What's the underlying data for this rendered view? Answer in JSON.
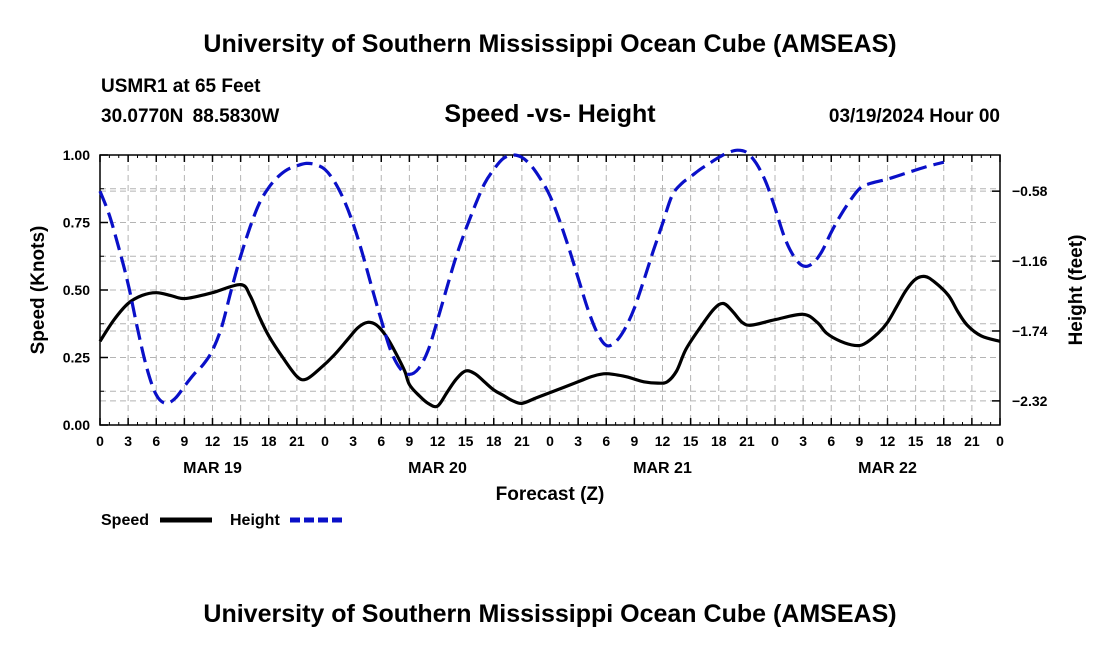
{
  "header": {
    "title": "University of Southern Mississippi Ocean Cube (AMSEAS)",
    "station": "USMR1 at 65 Feet",
    "coords": "30.0770N  88.5830W",
    "subtitle": "Speed -vs- Height",
    "date": "03/19/2024 Hour 00"
  },
  "footer": {
    "title": "University of Southern Mississippi Ocean Cube (AMSEAS)"
  },
  "colors": {
    "speed": "#000000",
    "height": "#0a10c8",
    "grid": "#b4b4b4"
  },
  "chart_data": {
    "type": "line",
    "title": "Speed -vs- Height",
    "xlabel": "Forecast (Z)",
    "ylabel": "Speed (Knots)",
    "y2label": "Height (feet)",
    "xlim": [
      0,
      96
    ],
    "ylim": [
      0,
      1
    ],
    "y2lim": [
      -2.52,
      -0.28
    ],
    "x_ticks": [
      0,
      3,
      6,
      9,
      12,
      15,
      18,
      21,
      24,
      27,
      30,
      33,
      36,
      39,
      42,
      45,
      48,
      51,
      54,
      57,
      60,
      63,
      66,
      69,
      72,
      75,
      78,
      81,
      84,
      87,
      90,
      93,
      96
    ],
    "x_tick_labels": [
      "0",
      "3",
      "6",
      "9",
      "12",
      "15",
      "18",
      "21",
      "0",
      "3",
      "6",
      "9",
      "12",
      "15",
      "18",
      "21",
      "0",
      "3",
      "6",
      "9",
      "12",
      "15",
      "18",
      "21",
      "0",
      "3",
      "6",
      "9",
      "12",
      "15",
      "18",
      "21",
      "0"
    ],
    "date_labels": [
      {
        "x": 12,
        "label": "MAR 19"
      },
      {
        "x": 36,
        "label": "MAR 20"
      },
      {
        "x": 60,
        "label": "MAR 21"
      },
      {
        "x": 84,
        "label": "MAR 22"
      }
    ],
    "y_ticks": [
      0,
      0.25,
      0.5,
      0.75,
      1.0
    ],
    "y_tick_labels": [
      "0.00",
      "0.25",
      "0.50",
      "0.75",
      "1.00"
    ],
    "y2_ticks": [
      -2.32,
      -1.74,
      -1.16,
      -0.58
    ],
    "y2_tick_labels": [
      "−2.32",
      "−1.74",
      "−1.16",
      "−0.58"
    ],
    "grid": true,
    "legend": {
      "position": "bottom-left",
      "entries": [
        "Speed",
        "Height"
      ]
    },
    "series": [
      {
        "name": "Speed",
        "axis": "left",
        "style": "solid",
        "points": [
          [
            0,
            0.31
          ],
          [
            1.5,
            0.39
          ],
          [
            3,
            0.45
          ],
          [
            4.5,
            0.48
          ],
          [
            6,
            0.49
          ],
          [
            7.5,
            0.48
          ],
          [
            8.5,
            0.47
          ],
          [
            9.5,
            0.47
          ],
          [
            12,
            0.49
          ],
          [
            15,
            0.52
          ],
          [
            16,
            0.48
          ],
          [
            17,
            0.4
          ],
          [
            18,
            0.33
          ],
          [
            19.5,
            0.25
          ],
          [
            21,
            0.18
          ],
          [
            22,
            0.17
          ],
          [
            23.5,
            0.21
          ],
          [
            25,
            0.26
          ],
          [
            26.5,
            0.32
          ],
          [
            27.5,
            0.36
          ],
          [
            28.5,
            0.38
          ],
          [
            29.5,
            0.37
          ],
          [
            30.5,
            0.33
          ],
          [
            31.5,
            0.27
          ],
          [
            32.5,
            0.2
          ],
          [
            33,
            0.15
          ],
          [
            34,
            0.11
          ],
          [
            35,
            0.08
          ],
          [
            36,
            0.07
          ],
          [
            37,
            0.12
          ],
          [
            38,
            0.17
          ],
          [
            39,
            0.2
          ],
          [
            40,
            0.19
          ],
          [
            41,
            0.16
          ],
          [
            42,
            0.13
          ],
          [
            43,
            0.11
          ],
          [
            44,
            0.09
          ],
          [
            45,
            0.08
          ],
          [
            46.5,
            0.1
          ],
          [
            48,
            0.12
          ],
          [
            51,
            0.16
          ],
          [
            52.5,
            0.18
          ],
          [
            54,
            0.19
          ],
          [
            56,
            0.18
          ],
          [
            57,
            0.17
          ],
          [
            58,
            0.16
          ],
          [
            59.5,
            0.155
          ],
          [
            60.5,
            0.16
          ],
          [
            61.5,
            0.2
          ],
          [
            62.5,
            0.28
          ],
          [
            64,
            0.36
          ],
          [
            65.5,
            0.43
          ],
          [
            66.5,
            0.45
          ],
          [
            67.5,
            0.42
          ],
          [
            68.5,
            0.38
          ],
          [
            69.5,
            0.37
          ],
          [
            72,
            0.39
          ],
          [
            75,
            0.41
          ],
          [
            76.5,
            0.38
          ],
          [
            77.5,
            0.34
          ],
          [
            79,
            0.31
          ],
          [
            80.5,
            0.295
          ],
          [
            81.5,
            0.3
          ],
          [
            83,
            0.34
          ],
          [
            84,
            0.38
          ],
          [
            85,
            0.44
          ],
          [
            86,
            0.5
          ],
          [
            87,
            0.54
          ],
          [
            88,
            0.55
          ],
          [
            89,
            0.53
          ],
          [
            90.5,
            0.48
          ],
          [
            91.5,
            0.42
          ],
          [
            92.5,
            0.37
          ],
          [
            94,
            0.33
          ],
          [
            96,
            0.31
          ]
        ]
      },
      {
        "name": "Height",
        "axis": "right",
        "style": "dashed",
        "points": [
          [
            0,
            -0.58
          ],
          [
            1,
            -0.78
          ],
          [
            2,
            -1.05
          ],
          [
            3,
            -1.35
          ],
          [
            4,
            -1.72
          ],
          [
            5,
            -2.05
          ],
          [
            6,
            -2.27
          ],
          [
            7,
            -2.34
          ],
          [
            8,
            -2.3
          ],
          [
            9,
            -2.2
          ],
          [
            10,
            -2.1
          ],
          [
            11,
            -2.02
          ],
          [
            12,
            -1.9
          ],
          [
            13,
            -1.7
          ],
          [
            14,
            -1.4
          ],
          [
            15,
            -1.12
          ],
          [
            16,
            -0.88
          ],
          [
            17,
            -0.68
          ],
          [
            18,
            -0.55
          ],
          [
            19,
            -0.46
          ],
          [
            20,
            -0.4
          ],
          [
            21,
            -0.37
          ],
          [
            22,
            -0.35
          ],
          [
            23,
            -0.36
          ],
          [
            24,
            -0.4
          ],
          [
            25,
            -0.5
          ],
          [
            26,
            -0.65
          ],
          [
            27,
            -0.85
          ],
          [
            28,
            -1.1
          ],
          [
            29,
            -1.38
          ],
          [
            30,
            -1.65
          ],
          [
            31,
            -1.9
          ],
          [
            32,
            -2.05
          ],
          [
            33,
            -2.1
          ],
          [
            34,
            -2.05
          ],
          [
            35,
            -1.9
          ],
          [
            36,
            -1.65
          ],
          [
            37,
            -1.38
          ],
          [
            38,
            -1.12
          ],
          [
            39,
            -0.9
          ],
          [
            40,
            -0.7
          ],
          [
            41,
            -0.52
          ],
          [
            42,
            -0.4
          ],
          [
            43,
            -0.31
          ],
          [
            44,
            -0.28
          ],
          [
            45,
            -0.3
          ],
          [
            46,
            -0.37
          ],
          [
            47,
            -0.48
          ],
          [
            48,
            -0.62
          ],
          [
            49,
            -0.82
          ],
          [
            50,
            -1.05
          ],
          [
            51,
            -1.3
          ],
          [
            52,
            -1.55
          ],
          [
            53,
            -1.75
          ],
          [
            54,
            -1.86
          ],
          [
            55,
            -1.83
          ],
          [
            56,
            -1.72
          ],
          [
            57,
            -1.55
          ],
          [
            58,
            -1.32
          ],
          [
            59,
            -1.08
          ],
          [
            60,
            -0.85
          ],
          [
            61,
            -0.62
          ],
          [
            62,
            -0.52
          ],
          [
            63,
            -0.46
          ],
          [
            64,
            -0.4
          ],
          [
            65,
            -0.35
          ],
          [
            66,
            -0.3
          ],
          [
            67,
            -0.26
          ],
          [
            68,
            -0.24
          ],
          [
            69,
            -0.26
          ],
          [
            70,
            -0.35
          ],
          [
            71,
            -0.5
          ],
          [
            72,
            -0.72
          ],
          [
            73,
            -0.96
          ],
          [
            74,
            -1.12
          ],
          [
            75,
            -1.2
          ],
          [
            76,
            -1.18
          ],
          [
            77,
            -1.08
          ],
          [
            78,
            -0.92
          ],
          [
            79,
            -0.78
          ],
          [
            80,
            -0.66
          ],
          [
            81,
            -0.56
          ],
          [
            82,
            -0.52
          ],
          [
            84,
            -0.48
          ],
          [
            86,
            -0.43
          ],
          [
            88,
            -0.38
          ],
          [
            90,
            -0.34
          ]
        ]
      }
    ]
  }
}
